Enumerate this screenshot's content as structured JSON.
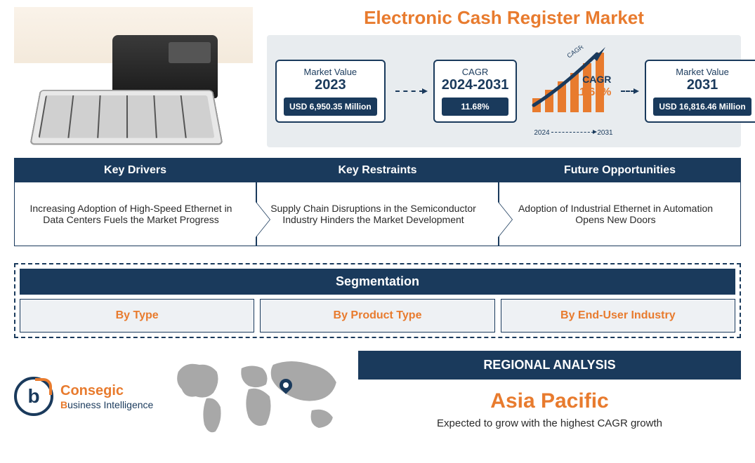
{
  "title": "Electronic Cash Register Market",
  "colors": {
    "primary": "#1a3a5c",
    "accent": "#e87b2e",
    "panel_bg": "#e8ecef",
    "seg_item_bg": "#eef1f4",
    "text": "#2a2a2a",
    "map_fill": "#a8a8a8"
  },
  "stats": {
    "mv2023": {
      "label": "Market Value",
      "year": "2023",
      "value": "USD 6,950.35 Million"
    },
    "cagr": {
      "label": "CAGR",
      "period": "2024-2031",
      "value": "11.68%"
    },
    "growth": {
      "cagr_label": "CAGR",
      "cagr_value": "11.68%",
      "year_start": "2024",
      "year_end": "2031",
      "bars": [
        20,
        32,
        44,
        56,
        70,
        85
      ],
      "bar_color": "#e87b2e",
      "arrow_color": "#1a3a5c"
    },
    "mv2031": {
      "label": "Market Value",
      "year": "2031",
      "value": "USD 16,816.46 Million"
    }
  },
  "factors": {
    "drivers": {
      "title": "Key Drivers",
      "body": "Increasing Adoption of High-Speed Ethernet in Data Centers Fuels the Market Progress"
    },
    "restraints": {
      "title": "Key Restraints",
      "body": "Supply Chain Disruptions in the Semiconductor Industry Hinders the Market Development"
    },
    "opportunities": {
      "title": "Future Opportunities",
      "body": "Adoption of Industrial Ethernet in Automation Opens New Doors"
    }
  },
  "segmentation": {
    "title": "Segmentation",
    "items": [
      "By Type",
      "By Product Type",
      "By End-User Industry"
    ]
  },
  "brand": {
    "name": "Consegic",
    "tagline_prefix": "B",
    "tagline_rest": "usiness Intelligence",
    "badge_letter": "b"
  },
  "regional": {
    "header": "REGIONAL ANALYSIS",
    "region": "Asia Pacific",
    "note": "Expected to grow with the highest CAGR growth"
  }
}
